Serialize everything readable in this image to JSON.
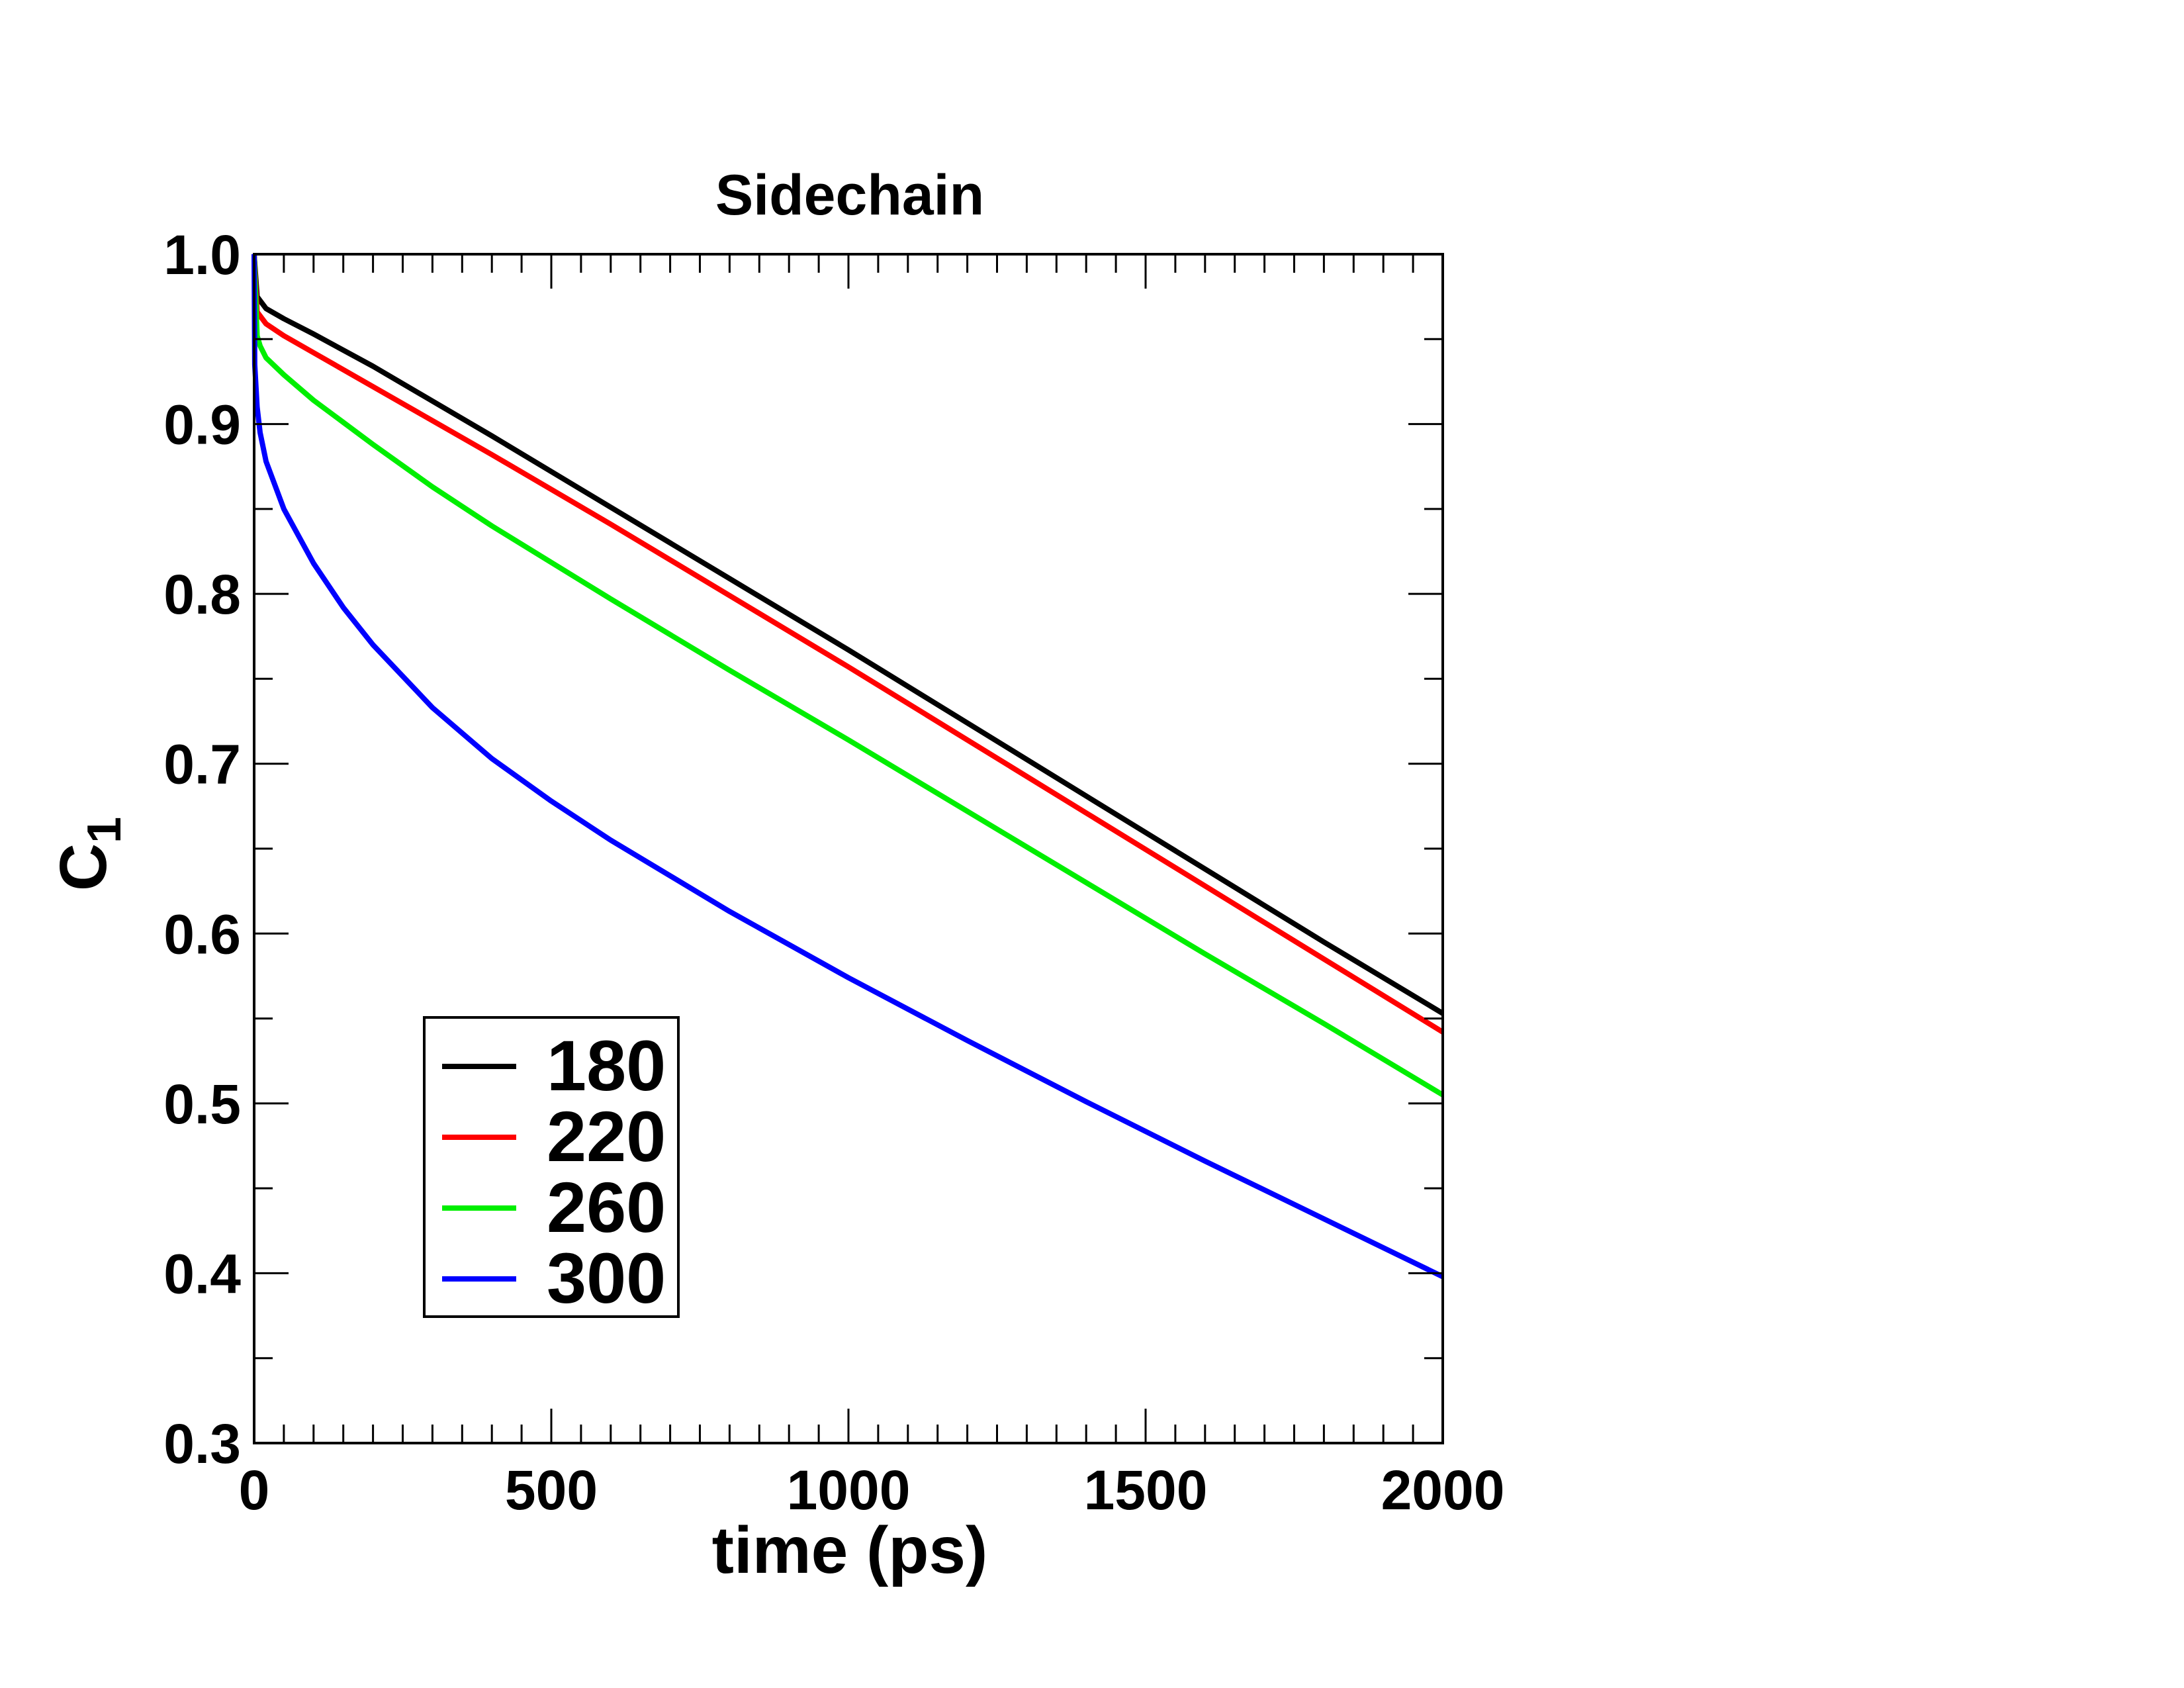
{
  "chart_data": {
    "type": "line",
    "title": "Sidechain",
    "xlabel": "time (ps)",
    "ylabel": {
      "base": "C",
      "subscript": "1"
    },
    "xlim": [
      0,
      2000
    ],
    "ylim": [
      0.3,
      1.0
    ],
    "x_ticks": [
      0,
      500,
      1000,
      1500,
      2000
    ],
    "x_tick_labels": [
      "0",
      "500",
      "1000",
      "1500",
      "2000"
    ],
    "y_ticks": [
      0.3,
      0.4,
      0.5,
      0.6,
      0.7,
      0.8,
      0.9,
      1.0
    ],
    "y_tick_labels": [
      "0.3",
      "0.4",
      "0.5",
      "0.6",
      "0.7",
      "0.8",
      "0.9",
      "1.0"
    ],
    "grid": false,
    "legend_position": "bottom-left",
    "series": [
      {
        "name": "180",
        "color": "#000000",
        "x": [
          0,
          5,
          20,
          50,
          100,
          200,
          400,
          600,
          800,
          1000,
          1200,
          1400,
          1600,
          1800,
          2000
        ],
        "y": [
          1.0,
          0.975,
          0.968,
          0.962,
          0.953,
          0.934,
          0.893,
          0.851,
          0.809,
          0.767,
          0.724,
          0.681,
          0.638,
          0.595,
          0.553
        ]
      },
      {
        "name": "220",
        "color": "#ff0000",
        "x": [
          0,
          5,
          20,
          50,
          100,
          200,
          400,
          600,
          800,
          1000,
          1200,
          1400,
          1600,
          1800,
          2000
        ],
        "y": [
          1.0,
          0.966,
          0.959,
          0.952,
          0.942,
          0.922,
          0.882,
          0.841,
          0.799,
          0.757,
          0.714,
          0.671,
          0.628,
          0.585,
          0.542
        ]
      },
      {
        "name": "260",
        "color": "#00ee00",
        "x": [
          0,
          5,
          10,
          20,
          50,
          100,
          150,
          200,
          300,
          400,
          600,
          800,
          1000,
          1200,
          1400,
          1600,
          1800,
          2000
        ],
        "y": [
          1.0,
          0.952,
          0.946,
          0.939,
          0.929,
          0.914,
          0.901,
          0.888,
          0.863,
          0.84,
          0.797,
          0.755,
          0.714,
          0.672,
          0.63,
          0.588,
          0.547,
          0.505
        ]
      },
      {
        "name": "300",
        "color": "#0000ff",
        "x": [
          0,
          1,
          5,
          10,
          20,
          50,
          100,
          150,
          200,
          300,
          400,
          500,
          600,
          800,
          1000,
          1200,
          1400,
          1600,
          1800,
          2000
        ],
        "y": [
          1.0,
          0.935,
          0.91,
          0.895,
          0.878,
          0.85,
          0.818,
          0.792,
          0.77,
          0.733,
          0.703,
          0.678,
          0.655,
          0.613,
          0.574,
          0.537,
          0.501,
          0.466,
          0.432,
          0.398
        ]
      }
    ]
  }
}
